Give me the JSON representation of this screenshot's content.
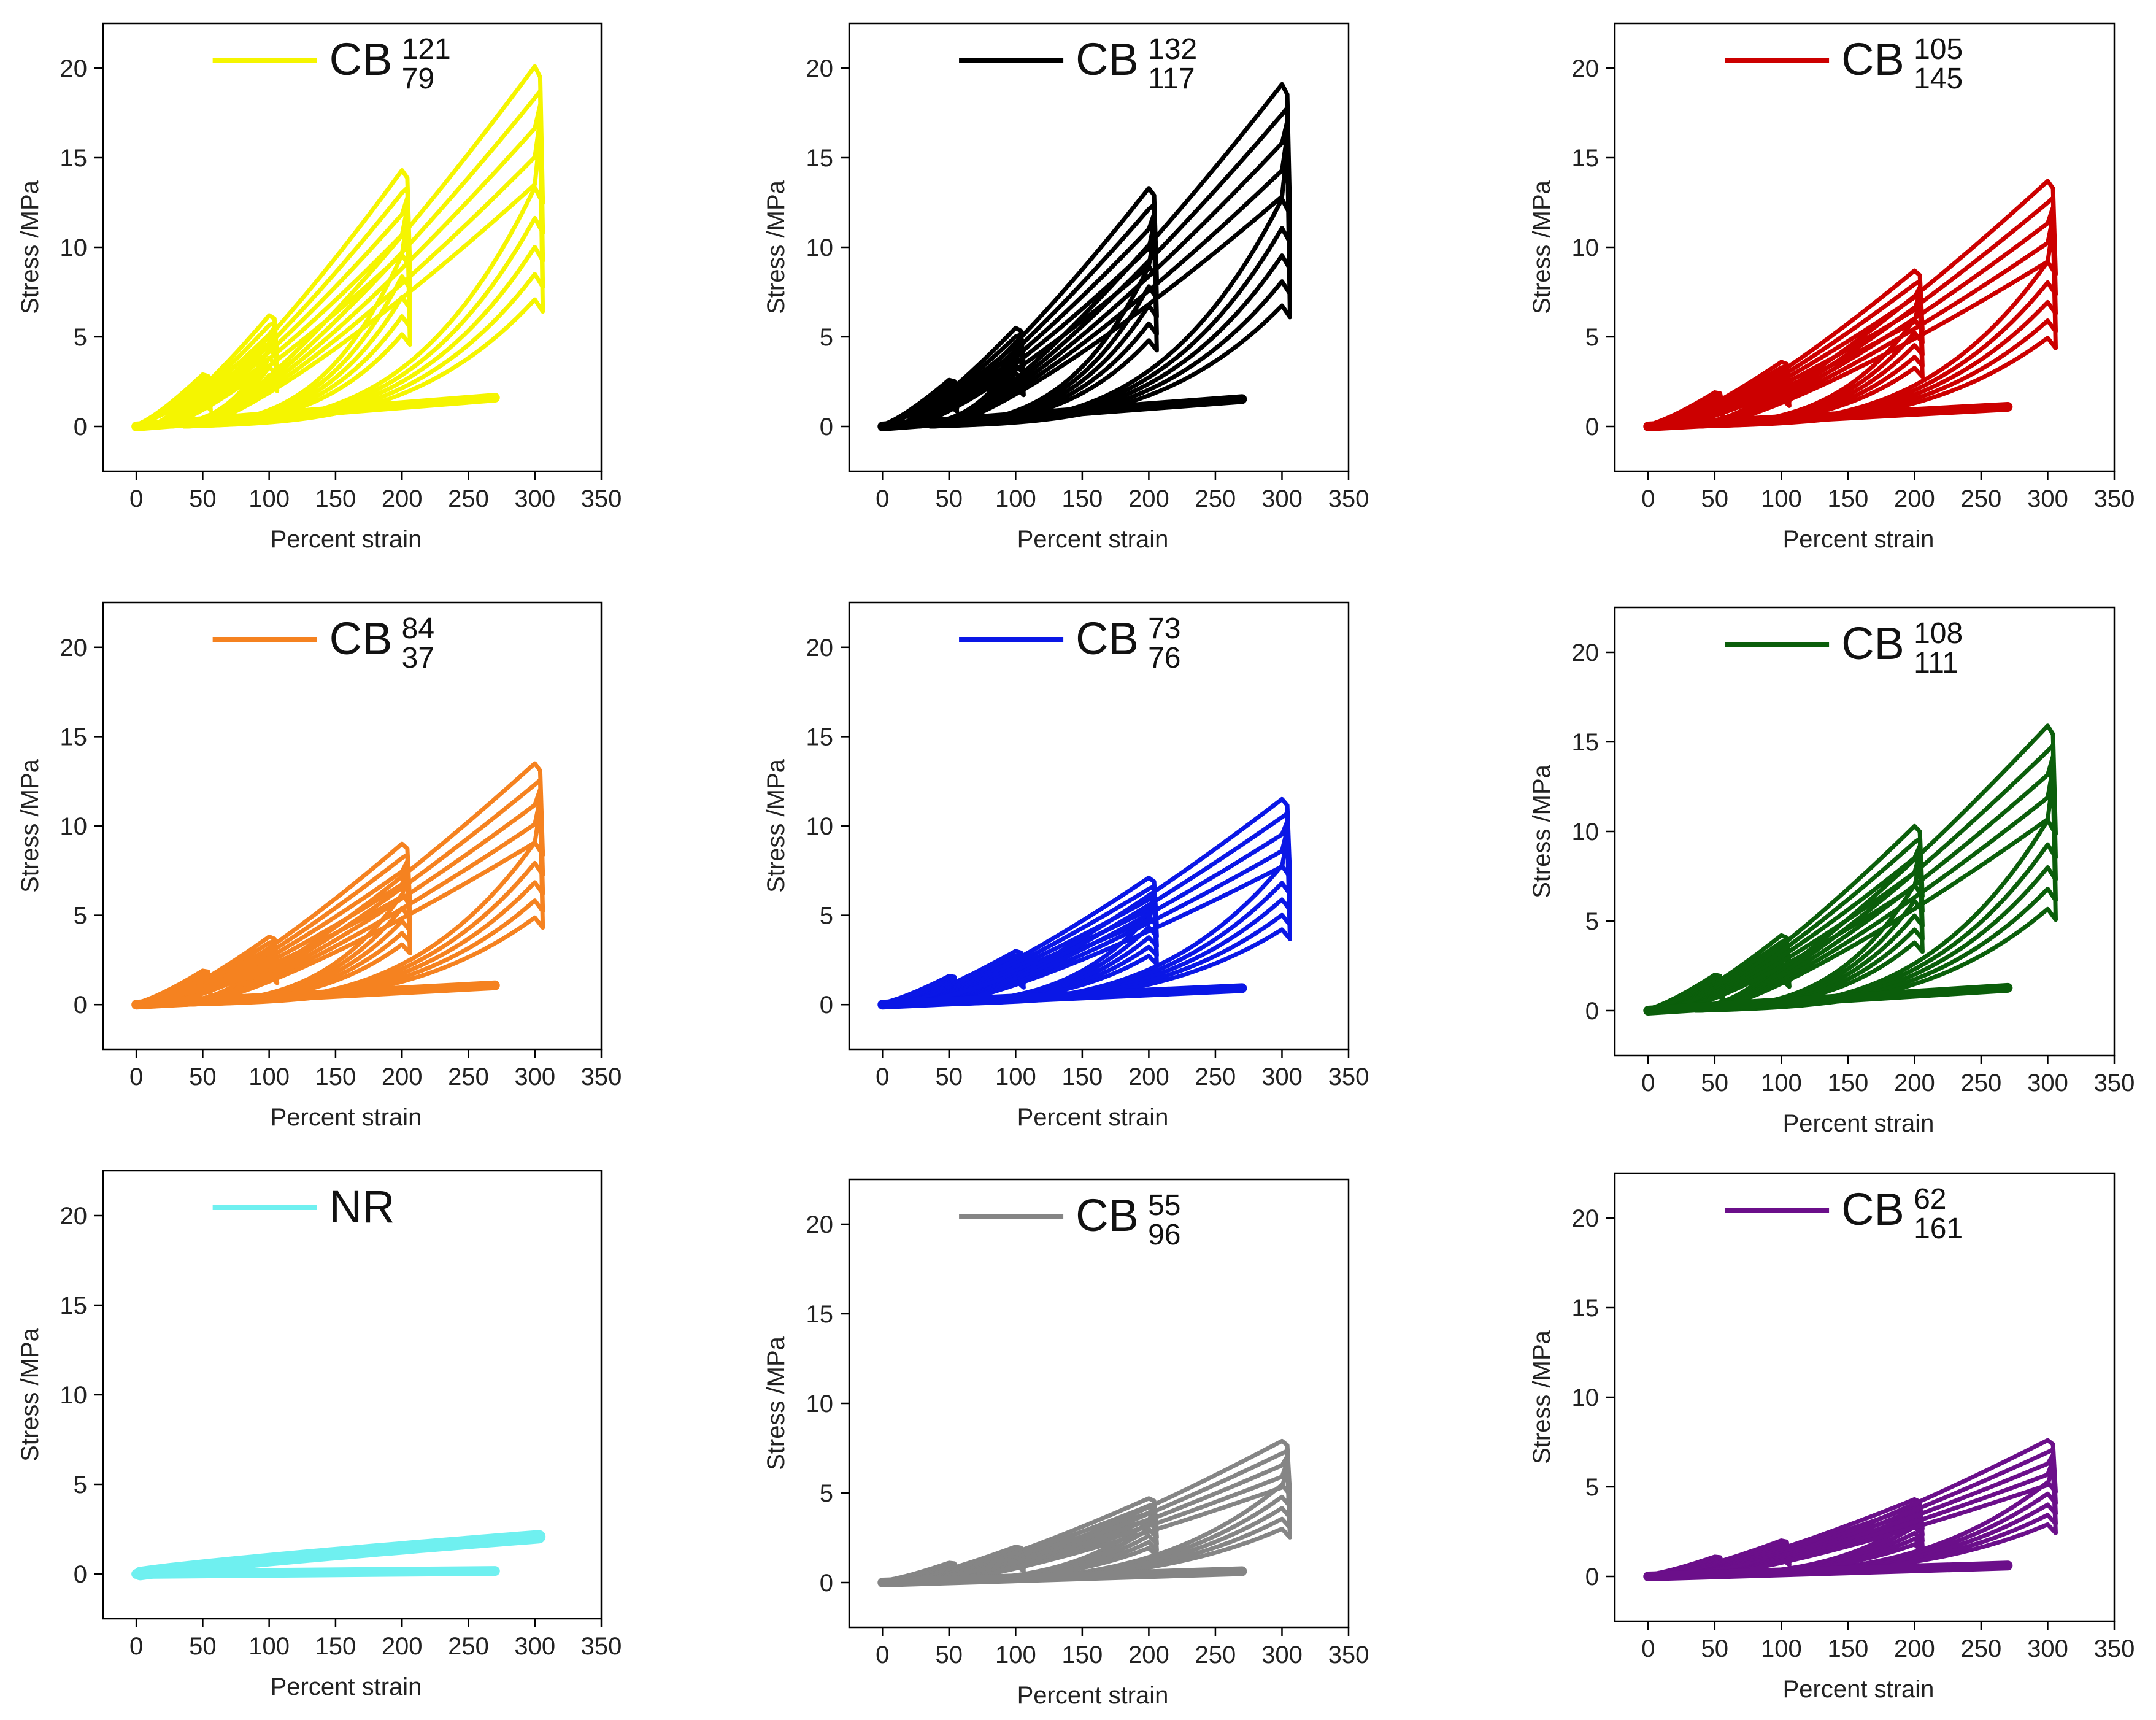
{
  "figure": {
    "description_free": true
  },
  "chart_data": [
    {
      "type": "line",
      "legend": {
        "base": "CB",
        "sup": "121",
        "sub": "79",
        "color": "#f5f500"
      },
      "xlabel": "Percent strain",
      "ylabel": "Stress /MPa",
      "xlim": [
        -25,
        350
      ],
      "ylim": [
        -2.5,
        22.5
      ],
      "xticks": [
        0,
        50,
        100,
        150,
        200,
        250,
        300,
        350
      ],
      "yticks": [
        0,
        5,
        10,
        15,
        20
      ],
      "grid": false,
      "cycles": [
        {
          "strain_max": 50,
          "stress_peak": 2.9
        },
        {
          "strain_max": 100,
          "stress_peak": 6.2
        },
        {
          "strain_max": 200,
          "stress_peak": 14.3
        },
        {
          "strain_max": 300,
          "stress_peak": 20.1
        }
      ]
    },
    {
      "type": "line",
      "legend": {
        "base": "CB",
        "sup": "132",
        "sub": "117",
        "color": "#000000"
      },
      "xlabel": "Percent strain",
      "ylabel": "Stress /MPa",
      "xlim": [
        -25,
        350
      ],
      "ylim": [
        -2.5,
        22.5
      ],
      "xticks": [
        0,
        50,
        100,
        150,
        200,
        250,
        300,
        350
      ],
      "yticks": [
        0,
        5,
        10,
        15,
        20
      ],
      "grid": false,
      "cycles": [
        {
          "strain_max": 50,
          "stress_peak": 2.6
        },
        {
          "strain_max": 100,
          "stress_peak": 5.5
        },
        {
          "strain_max": 200,
          "stress_peak": 13.3
        },
        {
          "strain_max": 300,
          "stress_peak": 19.1
        }
      ]
    },
    {
      "type": "line",
      "legend": {
        "base": "CB",
        "sup": "105",
        "sub": "145",
        "color": "#cc0000"
      },
      "xlabel": "Percent strain",
      "ylabel": "Stress /MPa",
      "xlim": [
        -25,
        350
      ],
      "ylim": [
        -2.5,
        22.5
      ],
      "xticks": [
        0,
        50,
        100,
        150,
        200,
        250,
        300,
        350
      ],
      "yticks": [
        0,
        5,
        10,
        15,
        20
      ],
      "grid": false,
      "cycles": [
        {
          "strain_max": 50,
          "stress_peak": 1.9
        },
        {
          "strain_max": 100,
          "stress_peak": 3.6
        },
        {
          "strain_max": 200,
          "stress_peak": 8.7
        },
        {
          "strain_max": 300,
          "stress_peak": 13.7
        }
      ]
    },
    {
      "type": "line",
      "legend": {
        "base": "CB",
        "sup": "84",
        "sub": "37",
        "color": "#f58220"
      },
      "xlabel": "Percent strain",
      "ylabel": "Stress /MPa",
      "xlim": [
        -25,
        350
      ],
      "ylim": [
        -2.5,
        22.5
      ],
      "xticks": [
        0,
        50,
        100,
        150,
        200,
        250,
        300,
        350
      ],
      "yticks": [
        0,
        5,
        10,
        15,
        20
      ],
      "grid": false,
      "cycles": [
        {
          "strain_max": 50,
          "stress_peak": 1.9
        },
        {
          "strain_max": 100,
          "stress_peak": 3.8
        },
        {
          "strain_max": 200,
          "stress_peak": 9.0
        },
        {
          "strain_max": 300,
          "stress_peak": 13.5
        }
      ]
    },
    {
      "type": "line",
      "legend": {
        "base": "CB",
        "sup": "73",
        "sub": "76",
        "color": "#0a17e6"
      },
      "xlabel": "Percent strain",
      "ylabel": "Stress /MPa",
      "xlim": [
        -25,
        350
      ],
      "ylim": [
        -2.5,
        22.5
      ],
      "xticks": [
        0,
        50,
        100,
        150,
        200,
        250,
        300,
        350
      ],
      "yticks": [
        0,
        5,
        10,
        15,
        20
      ],
      "grid": false,
      "cycles": [
        {
          "strain_max": 50,
          "stress_peak": 1.6
        },
        {
          "strain_max": 100,
          "stress_peak": 3.0
        },
        {
          "strain_max": 200,
          "stress_peak": 7.1
        },
        {
          "strain_max": 300,
          "stress_peak": 11.5
        }
      ]
    },
    {
      "type": "line",
      "legend": {
        "base": "CB",
        "sup": "108",
        "sub": "111",
        "color": "#0b5e0b"
      },
      "xlabel": "Percent strain",
      "ylabel": "Stress /MPa",
      "xlim": [
        -25,
        350
      ],
      "ylim": [
        -2.5,
        22.5
      ],
      "xticks": [
        0,
        50,
        100,
        150,
        200,
        250,
        300,
        350
      ],
      "yticks": [
        0,
        5,
        10,
        15,
        20
      ],
      "grid": false,
      "cycles": [
        {
          "strain_max": 50,
          "stress_peak": 2.0
        },
        {
          "strain_max": 100,
          "stress_peak": 4.2
        },
        {
          "strain_max": 200,
          "stress_peak": 10.3
        },
        {
          "strain_max": 300,
          "stress_peak": 15.9
        }
      ]
    },
    {
      "type": "line",
      "legend": {
        "base": "NR",
        "sup": "",
        "sub": "",
        "color": "#6ff0f0"
      },
      "xlabel": "Percent strain",
      "ylabel": "Stress /MPa",
      "xlim": [
        -25,
        350
      ],
      "ylim": [
        -2.5,
        22.5
      ],
      "xticks": [
        0,
        50,
        100,
        150,
        200,
        250,
        300,
        350
      ],
      "yticks": [
        0,
        5,
        10,
        15,
        20
      ],
      "grid": false,
      "cycles": [
        {
          "strain_max": 300,
          "stress_peak": 2.1,
          "linear": true
        }
      ]
    },
    {
      "type": "line",
      "legend": {
        "base": "CB",
        "sup": "55",
        "sub": "96",
        "color": "#858585"
      },
      "xlabel": "Percent strain",
      "ylabel": "Stress /MPa",
      "xlim": [
        -25,
        350
      ],
      "ylim": [
        -2.5,
        22.5
      ],
      "xticks": [
        0,
        50,
        100,
        150,
        200,
        250,
        300,
        350
      ],
      "yticks": [
        0,
        5,
        10,
        15,
        20
      ],
      "grid": false,
      "cycles": [
        {
          "strain_max": 50,
          "stress_peak": 1.1
        },
        {
          "strain_max": 100,
          "stress_peak": 2.0
        },
        {
          "strain_max": 200,
          "stress_peak": 4.7
        },
        {
          "strain_max": 300,
          "stress_peak": 7.9
        }
      ]
    },
    {
      "type": "line",
      "legend": {
        "base": "CB",
        "sup": "62",
        "sub": "161",
        "color": "#6b0f8a"
      },
      "xlabel": "Percent strain",
      "ylabel": "Stress /MPa",
      "xlim": [
        -25,
        350
      ],
      "ylim": [
        -2.5,
        22.5
      ],
      "xticks": [
        0,
        50,
        100,
        150,
        200,
        250,
        300,
        350
      ],
      "yticks": [
        0,
        5,
        10,
        15,
        20
      ],
      "grid": false,
      "cycles": [
        {
          "strain_max": 50,
          "stress_peak": 1.1
        },
        {
          "strain_max": 100,
          "stress_peak": 2.0
        },
        {
          "strain_max": 200,
          "stress_peak": 4.3
        },
        {
          "strain_max": 300,
          "stress_peak": 7.6
        }
      ]
    }
  ]
}
